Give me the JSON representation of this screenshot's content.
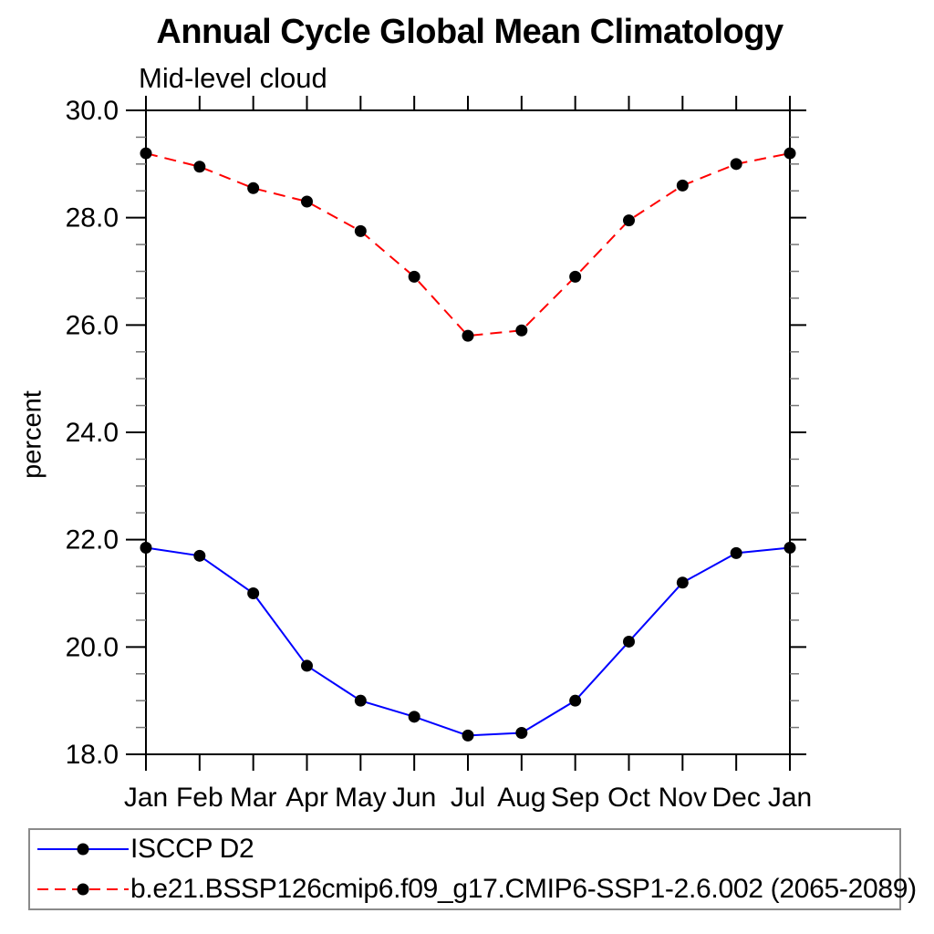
{
  "chart_data": {
    "type": "line",
    "title": "Annual Cycle Global Mean Climatology",
    "subtitle": "Mid-level cloud",
    "ylabel": "percent",
    "x_categories": [
      "Jan",
      "Feb",
      "Mar",
      "Apr",
      "May",
      "Jun",
      "Jul",
      "Aug",
      "Sep",
      "Oct",
      "Nov",
      "Dec",
      "Jan"
    ],
    "ylim": [
      18.0,
      30.0
    ],
    "y_major_step": 2.0,
    "y_minor_step": 0.5,
    "y_tick_labels": [
      "18.0",
      "20.0",
      "22.0",
      "24.0",
      "26.0",
      "28.0",
      "30.0"
    ],
    "grid": false,
    "legend_position": "bottom-left-box",
    "frame_color": "#000000",
    "minor_tick_color": "#777777",
    "marker": "filled-circle",
    "marker_color": "#000000",
    "series": [
      {
        "name": "ISCCP D2",
        "color": "#0000ff",
        "line_style": "solid",
        "values": [
          21.85,
          21.7,
          21.0,
          19.65,
          19.0,
          18.7,
          18.35,
          18.4,
          19.0,
          20.1,
          21.2,
          21.75,
          21.85
        ]
      },
      {
        "name": "b.e21.BSSP126cmip6.f09_g17.CMIP6-SSP1-2.6.002 (2065-2089)",
        "color": "#ff0000",
        "line_style": "dashed",
        "values": [
          29.2,
          28.95,
          28.55,
          28.3,
          27.75,
          26.9,
          25.8,
          25.9,
          26.9,
          27.95,
          28.6,
          29.0,
          29.2
        ]
      }
    ]
  }
}
